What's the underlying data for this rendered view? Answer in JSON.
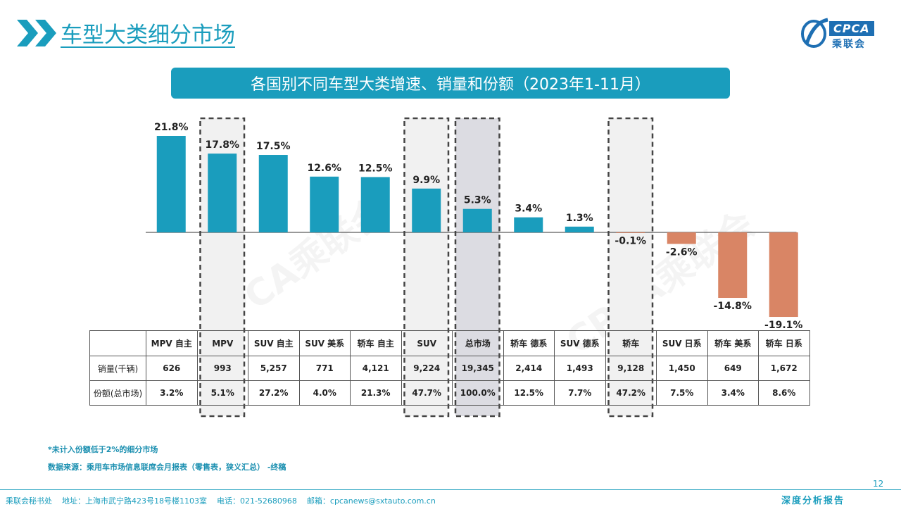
{
  "header": {
    "title": "车型大类细分市场",
    "logo_text": "CPCA",
    "logo_cn": "乘联会"
  },
  "chart_title": "各国别不同车型大类增速、销量和份额（2023年1-11月）",
  "colors": {
    "accent": "#1a9dbd",
    "positive_bar": "#1a9dbd",
    "negative_bar": "#d98565",
    "market_highlight": "#dcdce2",
    "dash_box": "#444444"
  },
  "chart_data": {
    "type": "bar",
    "categories": [
      "MPV 自主",
      "MPV",
      "SUV 自主",
      "SUV 美系",
      "轿车 自主",
      "SUV",
      "总市场",
      "轿车 德系",
      "SUV 德系",
      "轿车",
      "SUV 日系",
      "轿车 美系",
      "轿车 日系"
    ],
    "series": [
      {
        "values": [
          21.8,
          17.8,
          17.5,
          12.6,
          12.5,
          9.9,
          5.3,
          3.4,
          1.3,
          -0.1,
          -2.6,
          -14.8,
          -19.1
        ]
      }
    ],
    "value_labels": [
      "21.8%",
      "17.8%",
      "17.5%",
      "12.6%",
      "12.5%",
      "9.9%",
      "5.3%",
      "3.4%",
      "1.3%",
      "-0.1%",
      "-2.6%",
      "-14.8%",
      "-19.1%"
    ],
    "ylim": [
      -20,
      23
    ],
    "grid": false,
    "highlighted_dashed": [
      "MPV",
      "SUV",
      "总市场",
      "轿车"
    ],
    "shaded": [
      "总市场"
    ]
  },
  "table": {
    "row_labels": [
      "销量(千辆)",
      "份额(总市场)"
    ],
    "sales": [
      "626",
      "993",
      "5,257",
      "771",
      "4,121",
      "9,224",
      "19,345",
      "2,414",
      "1,493",
      "9,128",
      "1,450",
      "649",
      "1,672"
    ],
    "share": [
      "3.2%",
      "5.1%",
      "27.2%",
      "4.0%",
      "21.3%",
      "47.7%",
      "100.0%",
      "12.5%",
      "7.7%",
      "47.2%",
      "7.5%",
      "3.4%",
      "8.6%"
    ]
  },
  "footnotes": {
    "note": "*未计入份额低于2%的细分市场",
    "source": "数据来源：乘用车市场信息联席会月报表（零售表，狭义汇总）    -终稿"
  },
  "page_number": "12",
  "footer": {
    "address": "乘联会秘书处    地址：上海市武宁路423号18号楼1103室    电话：021-52680968    邮箱：cpcanews@sxtauto.com.cn",
    "report_tag": "深度分析报告"
  },
  "watermark": "CPCA乘联会"
}
